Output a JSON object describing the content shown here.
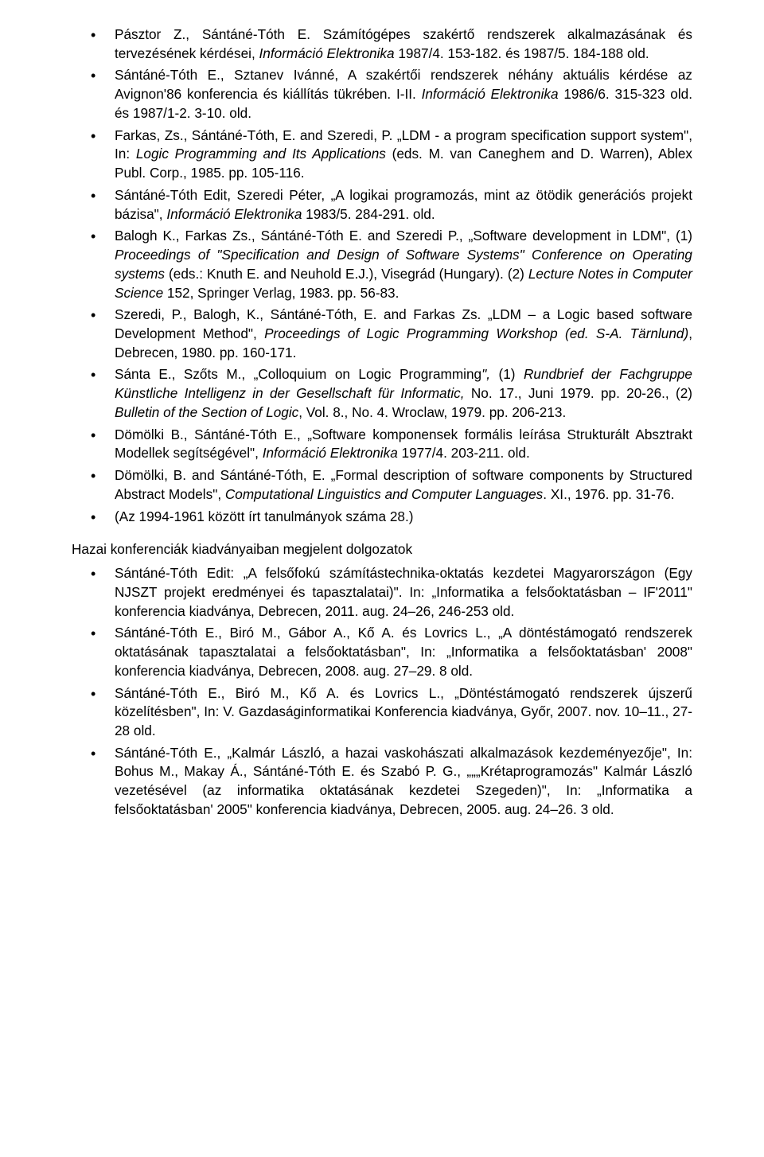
{
  "refs": [
    "Pásztor Z., Sántáné-Tóth E. Számítógépes szakértő rendszerek alkalmazásának és tervezésének kérdései, <em>Információ Elektronika</em> 1987/4. 153-182. és 1987/5. 184-188 old.",
    "Sántáné-Tóth E., Sztanev Ivánné, A szakértői rendszerek néhány aktuális kérdése az Avignon'86 konferencia és kiállítás tükrében. I-II. <em>Információ Elektronika</em> 1986/6. 315-323 old. és 1987/1-2. 3-10. old.",
    "Farkas, Zs., Sántáné-Tóth, E. and Szeredi, P. „LDM - a program specification support system\", In: <em>Logic Programming and Its Applications</em> (eds. M. van Caneghem and D. Warren), Ablex Publ. Corp., 1985. pp. 105-116.",
    "Sántáné-Tóth Edit, Szeredi Péter, „A logikai programozás, mint az ötödik generációs projekt bázisa\", <em>Információ Elektronika</em> 1983/5. 284-291. old.",
    "Balogh K., Farkas Zs., Sántáné-Tóth E. and Szeredi P., „Software development in LDM\", (1) <em>Proceedings of \"Specification and Design of Software Systems\" Conference on Operating systems</em> (eds.: Knuth E. and Neuhold E.J.), Visegrád (Hungary). (2) <em>Lecture Notes in Computer Science</em> 152, Springer Verlag, 1983. pp. 56-83.",
    "Szeredi, P., Balogh, K., Sántáné-Tóth, E. and Farkas Zs. „LDM – a Logic based software Development Method\", <em>Proceedings of Logic Programming Workshop (ed. S-A. Tärnlund)</em>, Debrecen, 1980. pp. 160-171.",
    "Sánta E., Szőts M., „Colloquium on Logic Programming<em>\",</em> (1) <em>Rundbrief der Fachgruppe Künstliche Intelligenz in der Gesellschaft für Informatic,</em> No. 17., Juni 1979. pp. 20-26., (2) <em>Bulletin of the Section of Logic</em>, Vol. 8., No. 4. Wroclaw, 1979. pp. 206-213.",
    "Dömölki B., Sántáné-Tóth E., „Software komponensek formális leírása Strukturált Absztrakt Modellek segítségével\", <em>Információ Elektronika</em> 1977/4. 203-211. old.",
    "Dömölki, B. and Sántáné-Tóth, E. „Formal description of software components by Structured Abstract Models\", <em>Computational Linguistics and Computer Languages</em>. XI., 1976. pp. 31-76.",
    "(Az 1994-1961 között írt tanulmányok száma 28.)"
  ],
  "heading": "Hazai konferenciák kiadványaiban megjelent dolgozatok",
  "refs2": [
    "Sántáné-Tóth Edit: „A felsőfokú számítástechnika-oktatás kezdetei Magyarországon (Egy NJSZT projekt eredményei és tapasztalatai)\". In: „Informatika a felsőoktatásban – IF'2011\" konferencia kiadványa, Debrecen, 2011. aug. 24–26, 246-253 old.",
    "Sántáné-Tóth E., Biró M., Gábor A., Kő A. és Lovrics L., „A döntéstámogató rendszerek oktatásának tapasztalatai a felsőoktatásban\", In: „Informatika a felsőoktatásban' 2008\" konferencia kiadványa, Debrecen, 2008. aug. 27–29. 8 old.",
    "Sántáné-Tóth E., Biró M., Kő A. és Lovrics L., „Döntéstámogató rendszerek újszerű közelítésben\", In: V. Gazdaságinformatikai Konferencia kiadványa, Győr, 2007. nov. 10–11., 27-28 old.",
    "Sántáné-Tóth E., „Kalmár László, a hazai vaskohászati alkalmazások kezdeményezője\", In: Bohus M., Makay Á., Sántáné-Tóth E. és Szabó P. G., „„„Krétaprogramozás\" Kalmár László vezetésével (az informatika oktatásának kezdetei Szegeden)\", In: „Informatika a felsőoktatásban' 2005\" konferencia kiadványa, Debrecen, 2005. aug. 24–26. 3 old."
  ]
}
